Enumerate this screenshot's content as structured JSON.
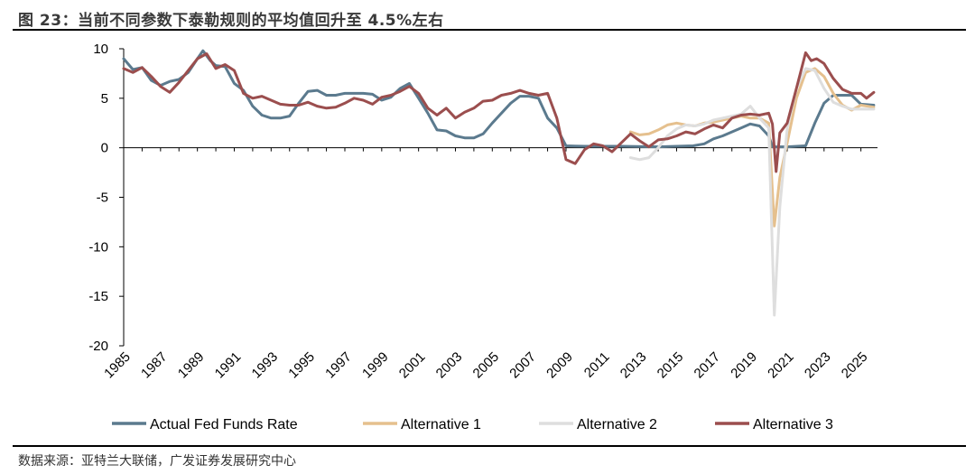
{
  "header": {
    "title": "图 23：当前不同参数下泰勒规则的平均值回升至 4.5%左右"
  },
  "footer": {
    "source": "数据来源：亚特兰大联储，广发证券发展研究中心"
  },
  "chart_data": {
    "type": "line",
    "title": "图 23：当前不同参数下泰勒规则的平均值回升至 4.5%左右",
    "xlabel": "",
    "ylabel": "",
    "xlim": [
      1985,
      2025.9
    ],
    "ylim": [
      -20,
      10
    ],
    "yticks": [
      10,
      5,
      0,
      -5,
      -10,
      -15,
      -20
    ],
    "xticks": [
      1985,
      1987,
      1989,
      1991,
      1993,
      1995,
      1997,
      1999,
      2001,
      2003,
      2005,
      2007,
      2009,
      2011,
      2013,
      2015,
      2017,
      2019,
      2021,
      2023,
      2025
    ],
    "legend_position": "bottom",
    "series": [
      {
        "name": "Actual Fed Funds Rate",
        "color": "#5b7a8e",
        "points": [
          [
            1985,
            9
          ],
          [
            1985.5,
            7.9
          ],
          [
            1986,
            8.1
          ],
          [
            1986.5,
            6.8
          ],
          [
            1987,
            6.3
          ],
          [
            1987.5,
            6.7
          ],
          [
            1988,
            6.9
          ],
          [
            1988.5,
            7.6
          ],
          [
            1989,
            9.0
          ],
          [
            1989.3,
            9.8
          ],
          [
            1989.7,
            8.8
          ],
          [
            1990,
            8.3
          ],
          [
            1990.5,
            8.2
          ],
          [
            1991,
            6.5
          ],
          [
            1991.5,
            5.8
          ],
          [
            1992,
            4.2
          ],
          [
            1992.5,
            3.3
          ],
          [
            1993,
            3.0
          ],
          [
            1993.5,
            3.0
          ],
          [
            1994,
            3.2
          ],
          [
            1994.5,
            4.5
          ],
          [
            1995,
            5.7
          ],
          [
            1995.5,
            5.8
          ],
          [
            1996,
            5.3
          ],
          [
            1996.5,
            5.3
          ],
          [
            1997,
            5.5
          ],
          [
            1997.5,
            5.5
          ],
          [
            1998,
            5.5
          ],
          [
            1998.5,
            5.4
          ],
          [
            1999,
            4.8
          ],
          [
            1999.5,
            5.1
          ],
          [
            2000,
            6.0
          ],
          [
            2000.5,
            6.5
          ],
          [
            2001,
            5.0
          ],
          [
            2001.5,
            3.5
          ],
          [
            2002,
            1.8
          ],
          [
            2002.5,
            1.7
          ],
          [
            2003,
            1.2
          ],
          [
            2003.5,
            1.0
          ],
          [
            2004,
            1.0
          ],
          [
            2004.5,
            1.4
          ],
          [
            2005,
            2.5
          ],
          [
            2005.5,
            3.5
          ],
          [
            2006,
            4.5
          ],
          [
            2006.5,
            5.2
          ],
          [
            2007,
            5.2
          ],
          [
            2007.5,
            5.0
          ],
          [
            2008,
            3.0
          ],
          [
            2008.5,
            2.0
          ],
          [
            2009,
            0.2
          ],
          [
            2010,
            0.15
          ],
          [
            2012,
            0.15
          ],
          [
            2014,
            0.1
          ],
          [
            2015.9,
            0.2
          ],
          [
            2016.5,
            0.4
          ],
          [
            2017,
            0.9
          ],
          [
            2017.5,
            1.2
          ],
          [
            2018,
            1.6
          ],
          [
            2018.5,
            2.0
          ],
          [
            2019,
            2.4
          ],
          [
            2019.5,
            2.2
          ],
          [
            2020,
            1.2
          ],
          [
            2020.2,
            0.1
          ],
          [
            2021,
            0.1
          ],
          [
            2022,
            0.2
          ],
          [
            2022.5,
            2.5
          ],
          [
            2023,
            4.5
          ],
          [
            2023.5,
            5.3
          ],
          [
            2024,
            5.3
          ],
          [
            2024.5,
            5.3
          ],
          [
            2025,
            4.4
          ],
          [
            2025.7,
            4.3
          ]
        ]
      },
      {
        "name": "Alternative 1",
        "color": "#e5c08e",
        "points": [
          [
            2012.5,
            1.6
          ],
          [
            2013,
            1.3
          ],
          [
            2013.5,
            1.4
          ],
          [
            2014,
            1.8
          ],
          [
            2014.5,
            2.3
          ],
          [
            2015,
            2.5
          ],
          [
            2015.5,
            2.3
          ],
          [
            2016,
            2.2
          ],
          [
            2016.5,
            2.5
          ],
          [
            2017,
            2.6
          ],
          [
            2017.5,
            2.8
          ],
          [
            2018,
            3.0
          ],
          [
            2018.5,
            3.2
          ],
          [
            2019,
            3.0
          ],
          [
            2019.5,
            3.0
          ],
          [
            2020,
            2.5
          ],
          [
            2020.3,
            -7.9
          ],
          [
            2020.6,
            -3.0
          ],
          [
            2021,
            0.5
          ],
          [
            2021.5,
            5.0
          ],
          [
            2022,
            7.6
          ],
          [
            2022.5,
            8.0
          ],
          [
            2023,
            7.2
          ],
          [
            2023.5,
            5.5
          ],
          [
            2024,
            4.3
          ],
          [
            2024.5,
            3.8
          ],
          [
            2025,
            4.3
          ],
          [
            2025.7,
            4.1
          ]
        ]
      },
      {
        "name": "Alternative 2",
        "color": "#dedede",
        "points": [
          [
            2012.5,
            -1.0
          ],
          [
            2013,
            -1.2
          ],
          [
            2013.5,
            -1.0
          ],
          [
            2014,
            0.0
          ],
          [
            2014.5,
            1.2
          ],
          [
            2015,
            1.9
          ],
          [
            2015.5,
            2.3
          ],
          [
            2016,
            2.2
          ],
          [
            2016.5,
            2.4
          ],
          [
            2017,
            2.8
          ],
          [
            2017.5,
            3.0
          ],
          [
            2018,
            3.2
          ],
          [
            2018.5,
            3.4
          ],
          [
            2019,
            4.2
          ],
          [
            2019.5,
            3.0
          ],
          [
            2020,
            2.0
          ],
          [
            2020.3,
            -16.9
          ],
          [
            2020.6,
            -6.0
          ],
          [
            2021,
            2.0
          ],
          [
            2021.5,
            6.0
          ],
          [
            2022,
            8.0
          ],
          [
            2022.5,
            7.8
          ],
          [
            2023,
            6.0
          ],
          [
            2023.5,
            4.6
          ],
          [
            2024,
            4.2
          ],
          [
            2024.5,
            3.9
          ],
          [
            2025,
            3.9
          ],
          [
            2025.7,
            3.9
          ]
        ]
      },
      {
        "name": "Alternative 3",
        "color": "#9b4e4e",
        "points": [
          [
            1985,
            8.0
          ],
          [
            1985.5,
            7.6
          ],
          [
            1986,
            8.1
          ],
          [
            1986.5,
            7.2
          ],
          [
            1987,
            6.2
          ],
          [
            1987.5,
            5.6
          ],
          [
            1988,
            6.6
          ],
          [
            1988.5,
            7.8
          ],
          [
            1989,
            9.0
          ],
          [
            1989.5,
            9.5
          ],
          [
            1990,
            8.0
          ],
          [
            1990.5,
            8.4
          ],
          [
            1991,
            7.8
          ],
          [
            1991.5,
            5.5
          ],
          [
            1992,
            5.0
          ],
          [
            1992.5,
            5.2
          ],
          [
            1993,
            4.8
          ],
          [
            1993.5,
            4.4
          ],
          [
            1994,
            4.3
          ],
          [
            1994.5,
            4.3
          ],
          [
            1995,
            4.6
          ],
          [
            1995.5,
            4.2
          ],
          [
            1996,
            4.0
          ],
          [
            1996.5,
            4.1
          ],
          [
            1997,
            4.5
          ],
          [
            1997.5,
            5.0
          ],
          [
            1998,
            4.8
          ],
          [
            1998.5,
            4.4
          ],
          [
            1999,
            5.1
          ],
          [
            1999.5,
            5.3
          ],
          [
            2000,
            5.7
          ],
          [
            2000.5,
            6.2
          ],
          [
            2001,
            5.5
          ],
          [
            2001.5,
            4.0
          ],
          [
            2002,
            3.3
          ],
          [
            2002.5,
            4.0
          ],
          [
            2003,
            3.0
          ],
          [
            2003.5,
            3.6
          ],
          [
            2004,
            4.0
          ],
          [
            2004.5,
            4.7
          ],
          [
            2005,
            4.8
          ],
          [
            2005.5,
            5.3
          ],
          [
            2006,
            5.5
          ],
          [
            2006.5,
            5.8
          ],
          [
            2007,
            5.5
          ],
          [
            2007.5,
            5.3
          ],
          [
            2008,
            5.5
          ],
          [
            2008.5,
            3.0
          ],
          [
            2009,
            -1.2
          ],
          [
            2009.5,
            -1.6
          ],
          [
            2010,
            -0.2
          ],
          [
            2010.5,
            0.4
          ],
          [
            2011,
            0.2
          ],
          [
            2011.5,
            -0.4
          ],
          [
            2012,
            0.5
          ],
          [
            2012.5,
            1.4
          ],
          [
            2013,
            0.7
          ],
          [
            2013.5,
            0.1
          ],
          [
            2014,
            0.8
          ],
          [
            2014.5,
            0.9
          ],
          [
            2015,
            1.2
          ],
          [
            2015.5,
            1.6
          ],
          [
            2016,
            1.4
          ],
          [
            2016.5,
            1.9
          ],
          [
            2017,
            2.3
          ],
          [
            2017.5,
            2.0
          ],
          [
            2018,
            3.0
          ],
          [
            2018.5,
            3.3
          ],
          [
            2019,
            3.4
          ],
          [
            2019.5,
            3.3
          ],
          [
            2020,
            3.5
          ],
          [
            2020.2,
            2.4
          ],
          [
            2020.4,
            -2.4
          ],
          [
            2020.6,
            1.5
          ],
          [
            2021,
            2.5
          ],
          [
            2021.5,
            6.0
          ],
          [
            2022,
            9.6
          ],
          [
            2022.3,
            8.8
          ],
          [
            2022.6,
            9.0
          ],
          [
            2023,
            8.5
          ],
          [
            2023.5,
            7.0
          ],
          [
            2024,
            5.9
          ],
          [
            2024.5,
            5.5
          ],
          [
            2025,
            5.5
          ],
          [
            2025.3,
            5.0
          ],
          [
            2025.7,
            5.6
          ]
        ]
      }
    ]
  }
}
